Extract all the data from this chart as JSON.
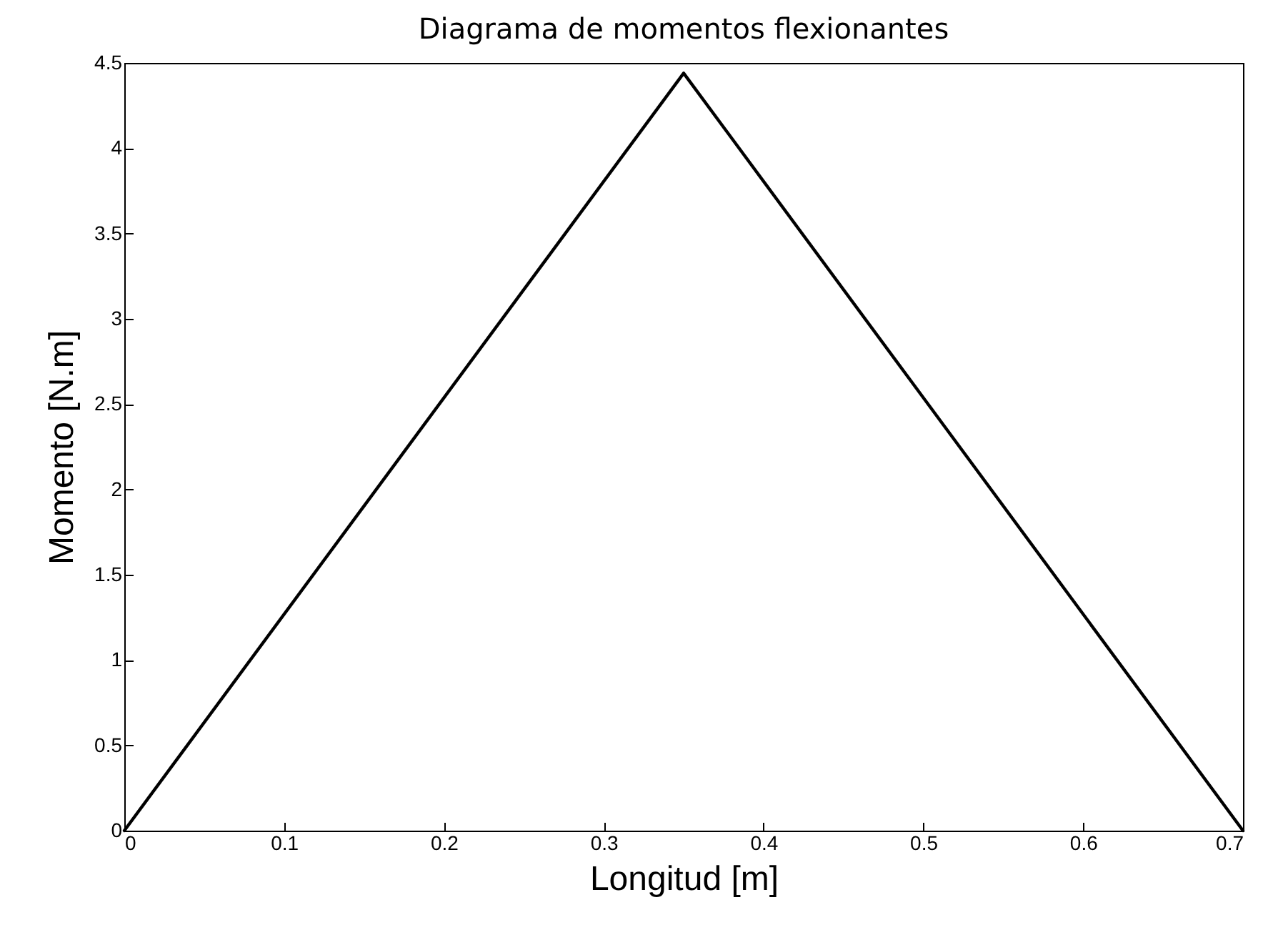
{
  "chart_data": {
    "type": "line",
    "title": "Diagrama de momentos flexionantes",
    "xlabel": "Longitud [m]",
    "ylabel": "Momento [N.m]",
    "x": [
      0,
      0.35,
      0.7
    ],
    "series": [
      {
        "color": "#000000",
        "values": [
          0,
          4.44,
          0
        ]
      }
    ],
    "xlim": [
      0,
      0.7
    ],
    "xticks": [
      0,
      0.1,
      0.2,
      0.3,
      0.4,
      0.5,
      0.6,
      0.7
    ],
    "ylim": [
      0,
      4.5
    ],
    "yticks": [
      0,
      0.5,
      1,
      1.5,
      2,
      2.5,
      3,
      3.5,
      4,
      4.5
    ],
    "grid": false,
    "marker": "none",
    "line_style": "solid"
  }
}
